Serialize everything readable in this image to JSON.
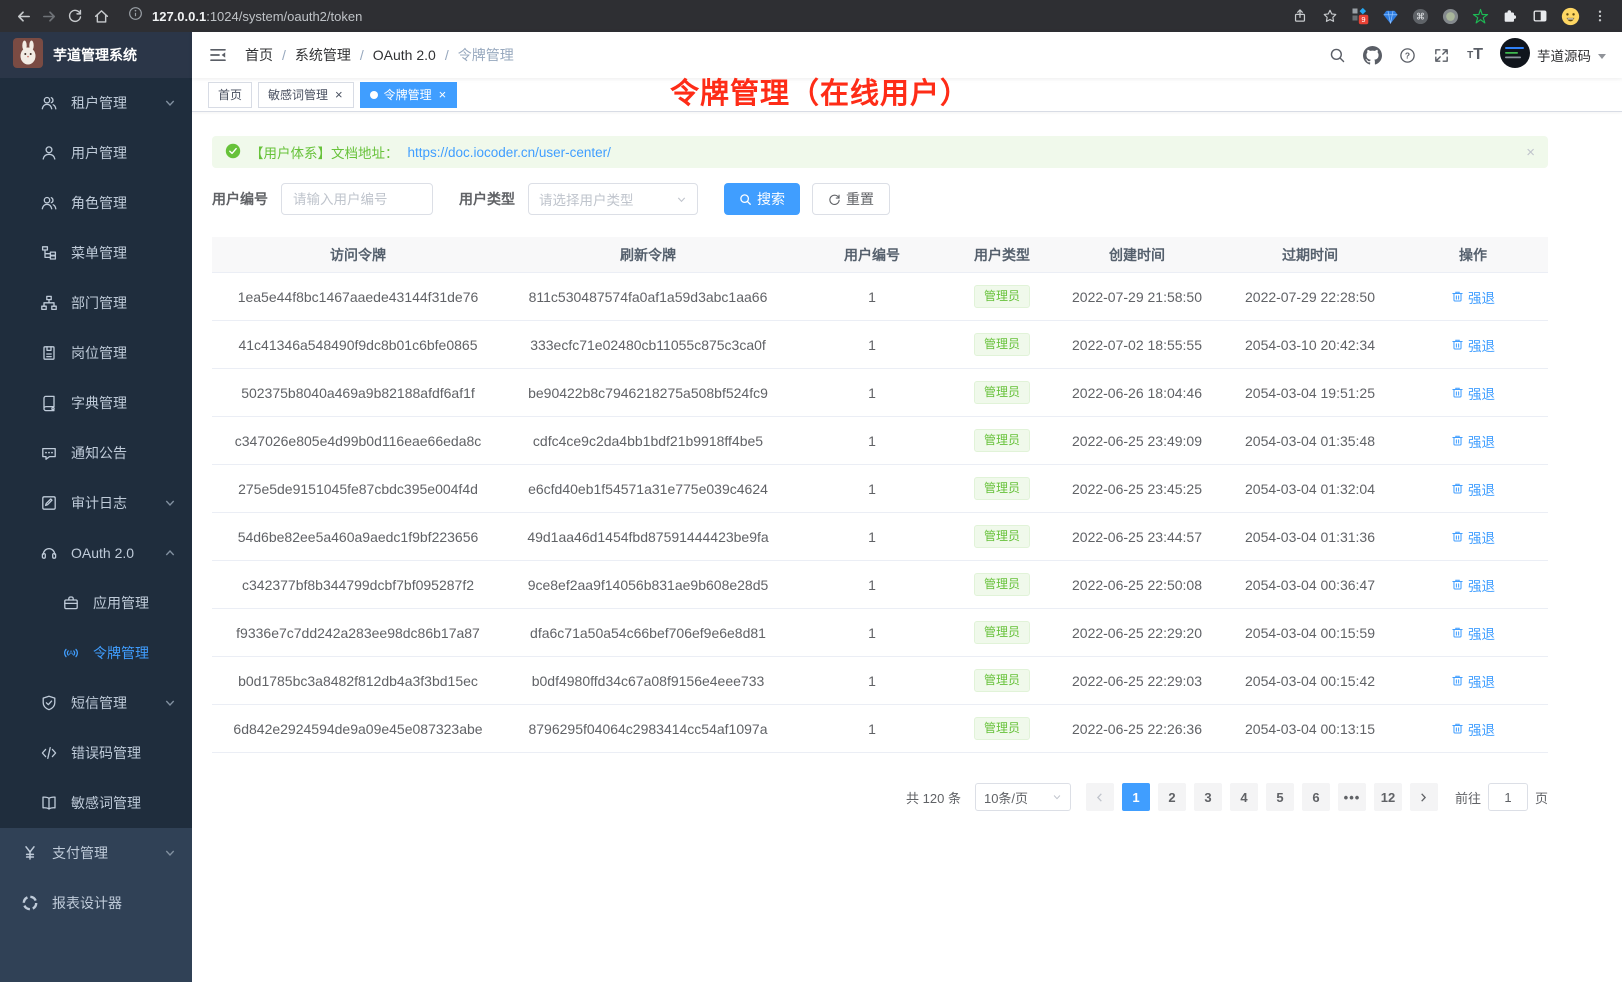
{
  "browser": {
    "url_host": "127.0.0.1",
    "url_rest": ":1024/system/oauth2/token",
    "extension_badge": "9"
  },
  "sidebar": {
    "logo_title": "芋道管理系统",
    "menu": [
      {
        "icon": "tenant-users-icon",
        "label": "租户管理",
        "chevron": "down",
        "level": 2
      },
      {
        "icon": "user-icon",
        "label": "用户管理",
        "level": 2
      },
      {
        "icon": "role-users-icon",
        "label": "角色管理",
        "level": 2
      },
      {
        "icon": "menu-tree-icon",
        "label": "菜单管理",
        "level": 2
      },
      {
        "icon": "dept-org-icon",
        "label": "部门管理",
        "level": 2
      },
      {
        "icon": "post-badge-icon",
        "label": "岗位管理",
        "level": 2
      },
      {
        "icon": "dict-book-icon",
        "label": "字典管理",
        "level": 2
      },
      {
        "icon": "notice-message-icon",
        "label": "通知公告",
        "level": 2
      },
      {
        "icon": "audit-log-icon",
        "label": "审计日志",
        "chevron": "down",
        "level": 2
      },
      {
        "icon": "oauth-headset-icon",
        "label": "OAuth 2.0",
        "chevron": "up",
        "level": 2
      },
      {
        "icon": "app-briefcase-icon",
        "label": "应用管理",
        "level": 3
      },
      {
        "icon": "token-signal-icon",
        "label": "令牌管理",
        "level": 3,
        "active": true
      },
      {
        "icon": "sms-shield-icon",
        "label": "短信管理",
        "chevron": "down",
        "level": 2
      },
      {
        "icon": "errorcode-code-icon",
        "label": "错误码管理",
        "level": 2
      },
      {
        "icon": "sensitive-book-icon",
        "label": "敏感词管理",
        "level": 2
      }
    ],
    "bottom_menu": [
      {
        "icon": "pay-yen-icon",
        "label": "支付管理",
        "chevron": "down",
        "level": 1
      },
      {
        "icon": "report-pie-icon",
        "label": "报表设计器",
        "level": 1
      }
    ]
  },
  "navbar": {
    "breadcrumb": [
      "首页",
      "系统管理",
      "OAuth 2.0",
      "令牌管理"
    ],
    "username": "芋道源码"
  },
  "tabs": [
    {
      "label": "首页",
      "closable": false,
      "active": false
    },
    {
      "label": "敏感词管理",
      "closable": true,
      "active": false
    },
    {
      "label": "令牌管理",
      "closable": true,
      "active": true
    }
  ],
  "annotation": {
    "text": "令牌管理（在线用户）",
    "color": "#fe2c17"
  },
  "alert": {
    "text": "【用户体系】文档地址：",
    "link": "https://doc.iocoder.cn/user-center/",
    "close_label": "×"
  },
  "filters": {
    "user_id_label": "用户编号",
    "user_id_placeholder": "请输入用户编号",
    "user_type_label": "用户类型",
    "user_type_placeholder": "请选择用户类型",
    "search_label": "搜索",
    "reset_label": "重置"
  },
  "table": {
    "headers": [
      "访问令牌",
      "刷新令牌",
      "用户编号",
      "用户类型",
      "创建时间",
      "过期时间",
      "操作"
    ],
    "action_label": "强退",
    "rows": [
      {
        "access": "1ea5e44f8bc1467aaede43144f31de76",
        "refresh": "811c530487574fa0af1a59d3abc1aa66",
        "user_id": "1",
        "user_type": "管理员",
        "created": "2022-07-29 21:58:50",
        "expires": "2022-07-29 22:28:50"
      },
      {
        "access": "41c41346a548490f9dc8b01c6bfe0865",
        "refresh": "333ecfc71e02480cb11055c875c3ca0f",
        "user_id": "1",
        "user_type": "管理员",
        "created": "2022-07-02 18:55:55",
        "expires": "2054-03-10 20:42:34"
      },
      {
        "access": "502375b8040a469a9b82188afdf6af1f",
        "refresh": "be90422b8c7946218275a508bf524fc9",
        "user_id": "1",
        "user_type": "管理员",
        "created": "2022-06-26 18:04:46",
        "expires": "2054-03-04 19:51:25"
      },
      {
        "access": "c347026e805e4d99b0d116eae66eda8c",
        "refresh": "cdfc4ce9c2da4bb1bdf21b9918ff4be5",
        "user_id": "1",
        "user_type": "管理员",
        "created": "2022-06-25 23:49:09",
        "expires": "2054-03-04 01:35:48"
      },
      {
        "access": "275e5de9151045fe87cbdc395e004f4d",
        "refresh": "e6cfd40eb1f54571a31e775e039c4624",
        "user_id": "1",
        "user_type": "管理员",
        "created": "2022-06-25 23:45:25",
        "expires": "2054-03-04 01:32:04"
      },
      {
        "access": "54d6be82ee5a460a9aedc1f9bf223656",
        "refresh": "49d1aa46d1454fbd87591444423be9fa",
        "user_id": "1",
        "user_type": "管理员",
        "created": "2022-06-25 23:44:57",
        "expires": "2054-03-04 01:31:36"
      },
      {
        "access": "c342377bf8b344799dcbf7bf095287f2",
        "refresh": "9ce8ef2aa9f14056b831ae9b608e28d5",
        "user_id": "1",
        "user_type": "管理员",
        "created": "2022-06-25 22:50:08",
        "expires": "2054-03-04 00:36:47"
      },
      {
        "access": "f9336e7c7dd242a283ee98dc86b17a87",
        "refresh": "dfa6c71a50a54c66bef706ef9e6e8d81",
        "user_id": "1",
        "user_type": "管理员",
        "created": "2022-06-25 22:29:20",
        "expires": "2054-03-04 00:15:59"
      },
      {
        "access": "b0d1785bc3a8482f812db4a3f3bd15ec",
        "refresh": "b0df4980ffd34c67a08f9156e4eee733",
        "user_id": "1",
        "user_type": "管理员",
        "created": "2022-06-25 22:29:03",
        "expires": "2054-03-04 00:15:42"
      },
      {
        "access": "6d842e2924594de9a09e45e087323abe",
        "refresh": "8796295f04064c2983414cc54af1097a",
        "user_id": "1",
        "user_type": "管理员",
        "created": "2022-06-25 22:26:36",
        "expires": "2054-03-04 00:13:15"
      }
    ]
  },
  "pagination": {
    "total_label": "共 120 条",
    "page_size": "10条/页",
    "pages": [
      "1",
      "2",
      "3",
      "4",
      "5",
      "6",
      "•••",
      "12"
    ],
    "active_page": "1",
    "goto_label": "前往",
    "goto_value": "1",
    "goto_suffix": "页"
  },
  "colors": {
    "accent": "#409eff",
    "success": "#67c23a",
    "annotation_red": "#fe2c17"
  }
}
